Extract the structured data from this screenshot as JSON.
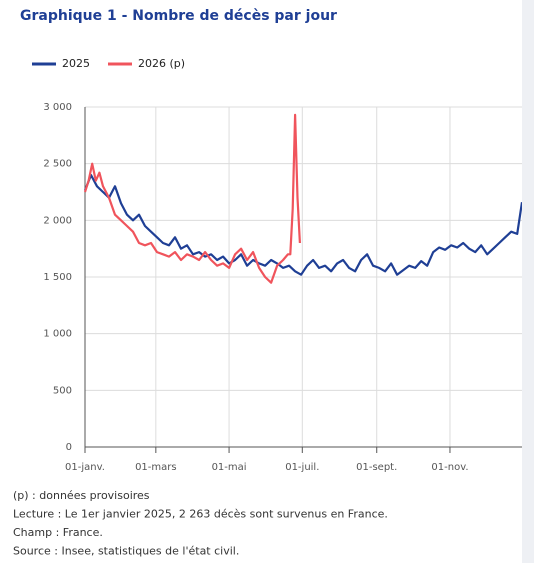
{
  "chart_data": {
    "type": "line",
    "title": "Graphique 1 - Nombre de décès par jour",
    "xlim": [
      1,
      365
    ],
    "xticks": [
      {
        "value": 1,
        "label": "01-janv."
      },
      {
        "value": 60,
        "label": "01-mars"
      },
      {
        "value": 121,
        "label": "01-mai"
      },
      {
        "value": 182,
        "label": "01-juil."
      },
      {
        "value": 244,
        "label": "01-sept."
      },
      {
        "value": 305,
        "label": "01-nov."
      }
    ],
    "ylim": [
      0,
      3000
    ],
    "yticks": [
      0,
      {
        "value": 500,
        "label": "500"
      },
      {
        "value": 1000,
        "label": "1 000"
      },
      {
        "value": 1500,
        "label": "1 500"
      },
      {
        "value": 2000,
        "label": "2 000"
      },
      {
        "value": 2500,
        "label": "2 500"
      },
      {
        "value": 3000,
        "label": "3 000"
      }
    ],
    "grid": true,
    "series": [
      {
        "name": "2025",
        "color": "#1f3f95",
        "x": [
          1,
          6,
          11,
          16,
          21,
          26,
          31,
          36,
          41,
          46,
          51,
          56,
          61,
          66,
          71,
          76,
          81,
          86,
          91,
          96,
          101,
          106,
          111,
          116,
          121,
          126,
          131,
          136,
          141,
          146,
          151,
          156,
          161,
          166,
          171,
          176,
          181,
          186,
          191,
          196,
          201,
          206,
          211,
          216,
          221,
          226,
          231,
          236,
          241,
          246,
          251,
          256,
          261,
          266,
          271,
          276,
          281,
          286,
          291,
          296,
          301,
          306,
          311,
          316,
          321,
          326,
          331,
          336,
          341,
          346,
          351,
          356,
          361,
          365
        ],
        "values": [
          2263,
          2400,
          2300,
          2250,
          2200,
          2300,
          2150,
          2050,
          2000,
          2050,
          1950,
          1900,
          1850,
          1800,
          1780,
          1850,
          1750,
          1780,
          1700,
          1720,
          1680,
          1700,
          1650,
          1680,
          1620,
          1650,
          1700,
          1600,
          1650,
          1620,
          1600,
          1650,
          1620,
          1580,
          1600,
          1550,
          1520,
          1600,
          1650,
          1580,
          1600,
          1550,
          1620,
          1650,
          1580,
          1550,
          1650,
          1700,
          1600,
          1580,
          1550,
          1620,
          1520,
          1560,
          1600,
          1580,
          1640,
          1600,
          1720,
          1760,
          1740,
          1780,
          1760,
          1800,
          1750,
          1720,
          1780,
          1700,
          1750,
          1800,
          1850,
          1900,
          1880,
          2160
        ]
      },
      {
        "name": "2026 (p)",
        "color": "#f0545c",
        "x": [
          1,
          4,
          7,
          10,
          13,
          16,
          21,
          26,
          31,
          36,
          41,
          46,
          51,
          56,
          61,
          66,
          71,
          76,
          81,
          86,
          91,
          96,
          101,
          106,
          111,
          116,
          121,
          126,
          131,
          136,
          141,
          146,
          151,
          156,
          161,
          166,
          170,
          172,
          174,
          176,
          178,
          180
        ],
        "values": [
          2250,
          2350,
          2500,
          2350,
          2420,
          2300,
          2200,
          2050,
          2000,
          1950,
          1900,
          1800,
          1780,
          1800,
          1720,
          1700,
          1680,
          1720,
          1650,
          1700,
          1680,
          1650,
          1720,
          1650,
          1600,
          1620,
          1580,
          1700,
          1750,
          1650,
          1720,
          1580,
          1500,
          1450,
          1600,
          1650,
          1700,
          1700,
          2100,
          2930,
          2200,
          1800
        ]
      }
    ],
    "notes": [
      "(p) : données provisoires",
      "Lecture : Le 1er janvier 2025, 2 263 décès sont survenus en France.",
      "Champ : France.",
      "Source : Insee, statistiques de l'état civil."
    ]
  }
}
